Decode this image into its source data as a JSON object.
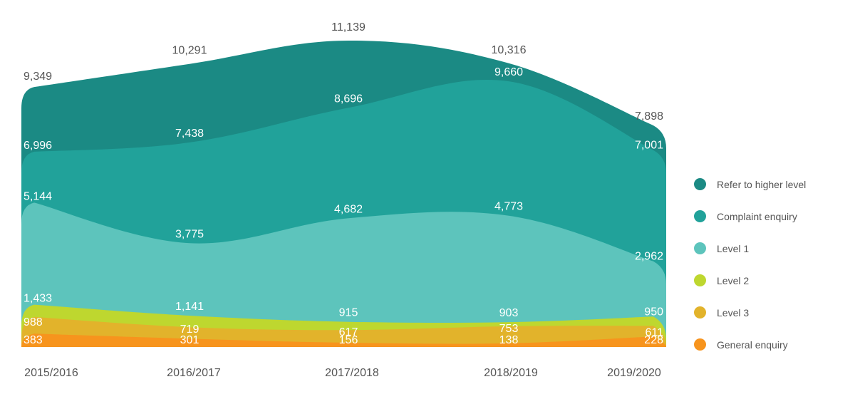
{
  "chart_data": {
    "type": "area",
    "stacked": true,
    "categories": [
      "2015/2016",
      "2016/2017",
      "2017/2018",
      "2018/2019",
      "2019/2020"
    ],
    "series": [
      {
        "name": "General enquiry",
        "color": "#f7941d",
        "values": [
          383,
          301,
          156,
          138,
          228
        ],
        "labels": [
          "383",
          "301",
          "156",
          "138",
          "228"
        ]
      },
      {
        "name": "Level 3",
        "color": "#e2b32b",
        "values": [
          988,
          719,
          617,
          753,
          611
        ],
        "labels": [
          "988",
          "719",
          "617",
          "753",
          "611"
        ]
      },
      {
        "name": "Level 2",
        "color": "#bed72f",
        "values": [
          1433,
          1141,
          915,
          903,
          950
        ],
        "labels": [
          "1,433",
          "1,141",
          "915",
          "903",
          "950"
        ]
      },
      {
        "name": "Level 1",
        "color": "#5dc4bc",
        "values": [
          5144,
          3775,
          4682,
          4773,
          2962
        ],
        "labels": [
          "5,144",
          "3,775",
          "4,682",
          "4,773",
          "2,962"
        ]
      },
      {
        "name": "Complaint enquiry",
        "color": "#21a29a",
        "values": [
          6996,
          7438,
          8696,
          9660,
          7001
        ],
        "labels": [
          "6,996",
          "7,438",
          "8,696",
          "9,660",
          "7,001"
        ]
      },
      {
        "name": "Refer to higher level",
        "color": "#1b8a84",
        "values": [
          9349,
          10291,
          11139,
          10316,
          7898
        ],
        "labels": [
          "9,349",
          "10,291",
          "11,139",
          "10,316",
          "7,898"
        ]
      }
    ],
    "ylim": [
      0,
      11139
    ],
    "grid": false,
    "legend_position": "right",
    "legend_order": [
      "Refer to higher level",
      "Complaint enquiry",
      "Level 1",
      "Level 2",
      "Level 3",
      "General enquiry"
    ]
  }
}
